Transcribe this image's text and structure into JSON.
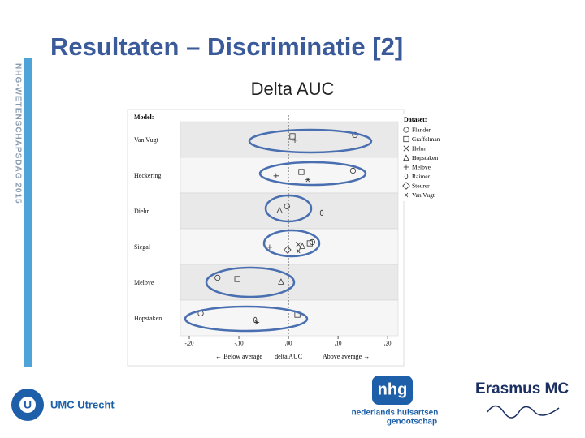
{
  "header": {
    "title": "Resultaten – Discriminatie [2]",
    "subtitle": "Delta AUC",
    "side_label": "NHG-WETENSCHAPSDAG 2015"
  },
  "chart_data": {
    "type": "dot",
    "y_header": "Model:",
    "legend_title": "Dataset:",
    "xlabel": "delta AUC",
    "xlabel_left": "← Below average",
    "xlabel_right": "Above average →",
    "categories": [
      "Van Vugt",
      "Heckering",
      "Diehr",
      "Siegal",
      "Melbye",
      "Hopstaken"
    ],
    "series": [
      {
        "name": "Flander",
        "marker": "circle",
        "color": "#333333",
        "values": [
          0.134,
          0.13,
          -0.003,
          0.048,
          -0.143,
          -0.177
        ]
      },
      {
        "name": "Graffelman",
        "marker": "square",
        "color": "#333333",
        "values": [
          0.008,
          0.026,
          null,
          0.043,
          -0.103,
          0.018
        ]
      },
      {
        "name": "Helm",
        "marker": "cross",
        "color": "#333333",
        "values": [
          null,
          null,
          null,
          0.02,
          null,
          null
        ]
      },
      {
        "name": "Hopstaken",
        "marker": "triangle",
        "color": "#333333",
        "values": [
          null,
          null,
          -0.018,
          0.028,
          -0.015,
          null
        ]
      },
      {
        "name": "Melbye",
        "marker": "plus",
        "color": "#333333",
        "values": [
          0.013,
          -0.025,
          null,
          -0.038,
          null,
          null
        ]
      },
      {
        "name": "Raimer",
        "marker": "oval",
        "color": "#333333",
        "values": [
          null,
          null,
          0.067,
          null,
          null,
          -0.067
        ]
      },
      {
        "name": "Steurer",
        "marker": "diamond",
        "color": "#333333",
        "values": [
          null,
          null,
          null,
          -0.002,
          null,
          null
        ]
      },
      {
        "name": "Van Vugt",
        "marker": "star",
        "color": "#333333",
        "values": [
          null,
          0.039,
          null,
          0.02,
          null,
          -0.064
        ]
      }
    ],
    "xlim": [
      -0.218,
      0.221
    ],
    "xticks": [
      {
        "value": -0.2,
        "label": "-,20"
      },
      {
        "value": -0.1,
        "label": "-,10"
      },
      {
        "value": 0,
        "label": ",00"
      },
      {
        "value": 0.1,
        "label": ",10"
      },
      {
        "value": 0.2,
        "label": ",20"
      }
    ],
    "zero_line": true
  },
  "logos": {
    "umc": "UMC Utrecht",
    "nhg_mark": "nhg",
    "nhg_line1": "nederlands huisartsen",
    "nhg_line2": "genootschap",
    "erasmus": "Erasmus MC"
  }
}
